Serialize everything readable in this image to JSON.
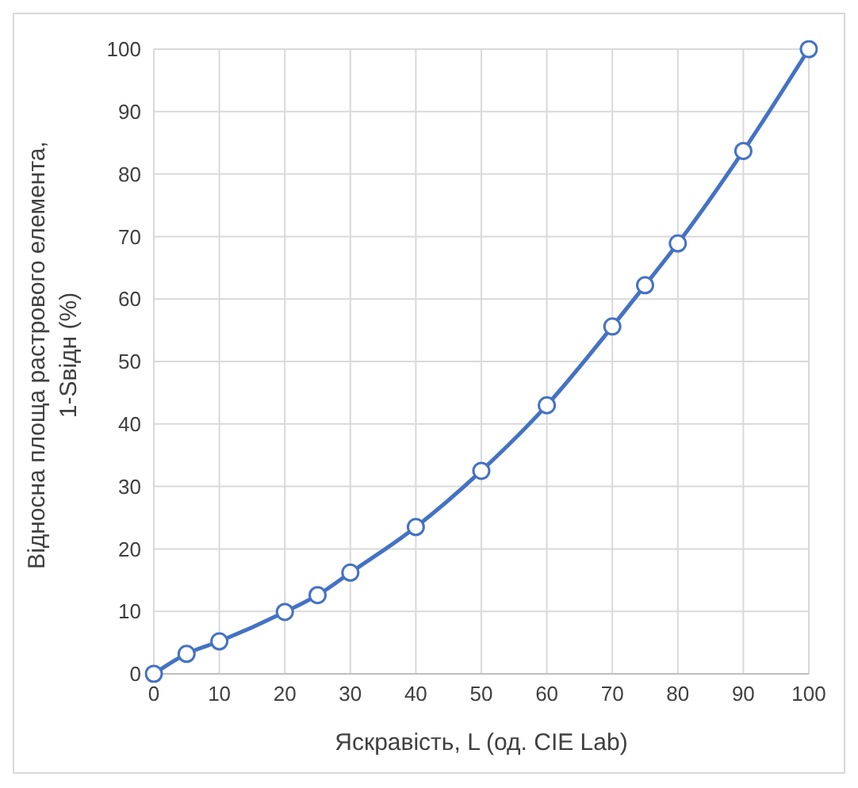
{
  "chart_data": {
    "type": "line",
    "xlabel": "Яскравість, L (од. CIE Lab)",
    "ylabel": "Відносна площа растрового елемента, 1-Sвідн (%)",
    "x": [
      0,
      5,
      10,
      20,
      25,
      30,
      40,
      50,
      60,
      70,
      75,
      80,
      90,
      100
    ],
    "series": [
      {
        "color": "#4472c4",
        "values": [
          0,
          3.2,
          5.2,
          9.9,
          12.6,
          16.2,
          23.5,
          32.5,
          43.0,
          55.6,
          62.2,
          68.9,
          83.7,
          100
        ]
      }
    ],
    "xlim": [
      0,
      100
    ],
    "xticks": [
      0,
      10,
      20,
      30,
      40,
      50,
      60,
      70,
      80,
      90,
      100
    ],
    "ylim": [
      0,
      100
    ],
    "yticks": [
      0,
      10,
      20,
      30,
      40,
      50,
      60,
      70,
      80,
      90,
      100
    ],
    "grid": true,
    "marker": "circle",
    "line_style": "solid",
    "legend": false
  }
}
